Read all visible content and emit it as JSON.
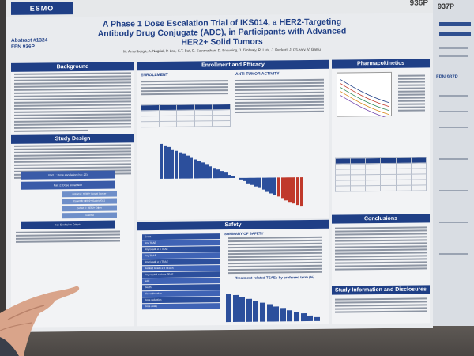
{
  "poster": {
    "poster_id": "936P",
    "logo_text": "ESMO",
    "title": "A Phase 1 Dose Escalation Trial of IKS014, a HER2-Targeting Antibody Drug Conjugate (ADC), in Participants with Advanced HER2+ Solid Tumors",
    "authors": "M. Amenberga, A. Nagrial, P. Lau, K.T. But, D. Sabanathan, D. Browning, J. Timlwaly, R. Lutz, J. Deckert, J. O'Leary, V. Ganju",
    "abstract_number": "Abstract #1324",
    "fpn": "FPN 936P"
  },
  "sections": {
    "background": "Background",
    "study_design": "Study Design",
    "enrollment_efficacy": "Enrollment and Efficacy",
    "enrollment_sub": "ENROLLMENT",
    "antitumor_sub": "ANTI-TUMOR ACTIVITY",
    "safety": "Safety",
    "summary_of_safety": "SUMMARY OF SAFETY",
    "pharmacokinetics": "Pharmacokinetics",
    "conclusions": "Conclusions",
    "study_info": "Study Information and Disclosures",
    "key_exclusion": "Key Exclusion Criteria",
    "trae_chart_title": "Treatment-related TEAEs by preferred term (%)"
  },
  "flow": {
    "part1": "Part 1: Dose escalation (n = 23)",
    "part2": "Part 2: Dose expansion",
    "cohort_a": "Cohort A: HER2+ Breast Cancer",
    "cohort_b": "Cohort B: HER2+ Gastric/GEJ",
    "cohort_c": "Cohort C: HER2+ Other",
    "cohort_d": "Cohort D"
  },
  "ae_rows": [
    "Event",
    "Any TEAE",
    "Any Grade ≥ 3 TEAE",
    "Any TRAE",
    "Any Grade ≥ 3 TRAE",
    "Related Grade ≥ 3 TEAEs",
    "Any related serious TEAE",
    "SAE",
    "Death",
    "Discontinuation",
    "Dose reduction",
    "Dose delay"
  ],
  "neighbor": {
    "poster_id": "937P",
    "fpn": "FPN 937P"
  },
  "chart_colors": {
    "primary": "#1f3f86",
    "bar": "#2c4f9c",
    "accent_red": "#c0392b"
  }
}
